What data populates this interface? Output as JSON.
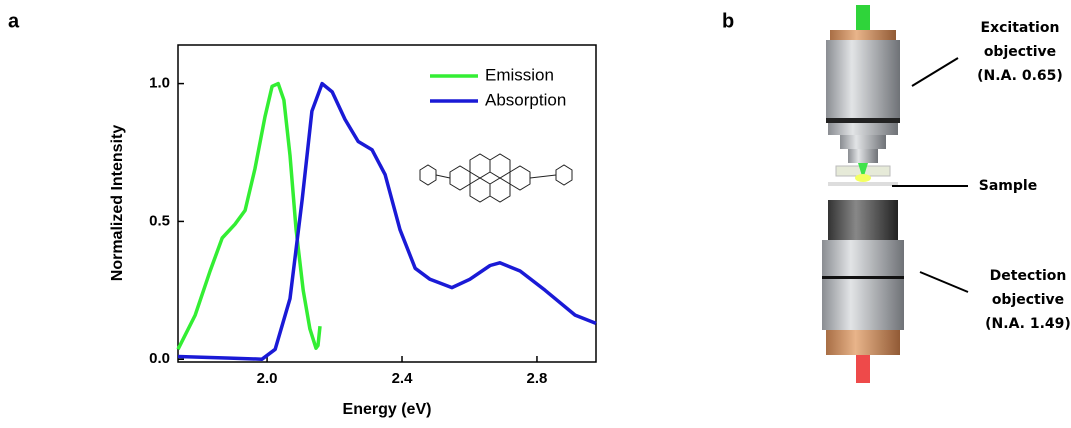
{
  "panels": {
    "a": "a",
    "b": "b"
  },
  "chart_data": {
    "type": "line",
    "xlabel": "Energy (eV)",
    "ylabel": "Normalized Intensity",
    "xlim": [
      1.736,
      2.975
    ],
    "xticks": [
      {
        "value": 2.0,
        "label": "2.0"
      },
      2.4,
      2.8
    ],
    "ylim": [
      -0.01,
      1.14
    ],
    "yticks": [
      {
        "value": 0,
        "label": "0.0"
      },
      0.5,
      {
        "value": 1,
        "label": "1.0"
      }
    ],
    "legend": "upper right",
    "series": [
      {
        "name": "Emission",
        "color": "#33ee33",
        "x": [
          1.736,
          1.787,
          1.831,
          1.867,
          1.905,
          1.935,
          1.964,
          1.994,
          2.015,
          2.033,
          2.05,
          2.068,
          2.086,
          2.107,
          2.127,
          2.145,
          2.151,
          2.157
        ],
        "values": [
          0.036,
          0.16,
          0.32,
          0.44,
          0.49,
          0.54,
          0.69,
          0.88,
          0.99,
          1.0,
          0.94,
          0.74,
          0.47,
          0.25,
          0.11,
          0.04,
          0.05,
          0.12
        ]
      },
      {
        "name": "Absorption",
        "color": "#1a1ad6",
        "x": [
          1.736,
          1.89,
          1.985,
          2.024,
          2.068,
          2.104,
          2.133,
          2.163,
          2.193,
          2.231,
          2.27,
          2.311,
          2.35,
          2.394,
          2.439,
          2.483,
          2.548,
          2.601,
          2.661,
          2.69,
          2.75,
          2.824,
          2.913,
          2.975
        ],
        "values": [
          0.01,
          0.004,
          0.0,
          0.036,
          0.22,
          0.58,
          0.9,
          1.0,
          0.97,
          0.87,
          0.79,
          0.76,
          0.67,
          0.47,
          0.33,
          0.29,
          0.26,
          0.29,
          0.34,
          0.35,
          0.32,
          0.25,
          0.16,
          0.13
        ]
      }
    ]
  },
  "diagram": {
    "excitation": [
      "Excitation",
      "objective",
      "(N.A. 0.65)"
    ],
    "sample": "Sample",
    "detection": [
      "Detection",
      "objective",
      "(N.A. 1.49)"
    ]
  }
}
